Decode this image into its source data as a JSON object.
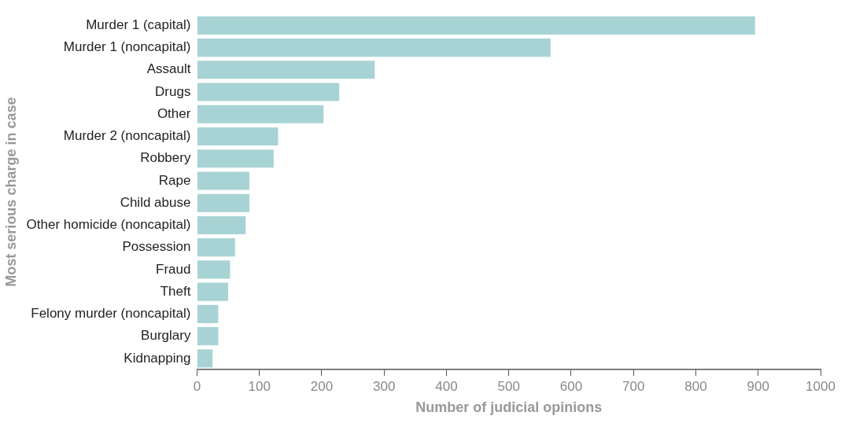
{
  "chart_data": {
    "type": "bar",
    "orientation": "horizontal",
    "xlabel": "Number of judicial opinions",
    "ylabel": "Most serious charge in case",
    "categories": [
      "Murder 1 (capital)",
      "Murder 1 (noncapital)",
      "Assault",
      "Drugs",
      "Other",
      "Murder 2 (noncapital)",
      "Robbery",
      "Rape",
      "Child abuse",
      "Other homicide (noncapital)",
      "Possession",
      "Fraud",
      "Theft",
      "Felony murder (noncapital)",
      "Burglary",
      "Kidnapping"
    ],
    "values": [
      895,
      567,
      285,
      228,
      203,
      130,
      123,
      84,
      84,
      78,
      61,
      53,
      50,
      34,
      34,
      25
    ],
    "color": "#a8d3d4",
    "xlim": [
      0,
      1000
    ],
    "xticks": [
      0,
      100,
      200,
      300,
      400,
      500,
      600,
      700,
      800,
      900,
      1000
    ],
    "grid": false,
    "legend": false
  }
}
